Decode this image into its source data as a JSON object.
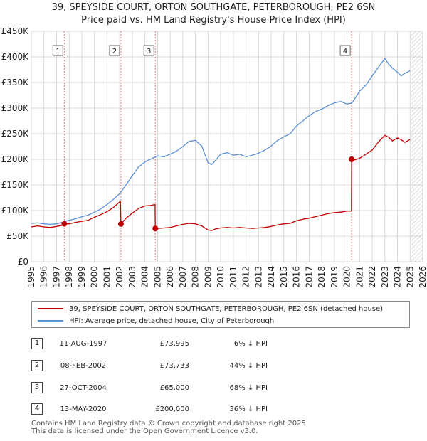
{
  "title_line1": "39, SPEYSIDE COURT, ORTON SOUTHGATE, PETERBOROUGH, PE2 6SN",
  "title_line2": "Price paid vs. HM Land Registry's House Price Index (HPI)",
  "colors": {
    "price_paid": "#c00000",
    "hpi": "#5b8fd6",
    "marker_line": "#e08080",
    "grid": "#d8d8d8",
    "hatch": "#aaaaaa"
  },
  "legend": {
    "series1": "39, SPEYSIDE COURT, ORTON SOUTHGATE, PETERBOROUGH, PE2 6SN (detached house)",
    "series2": "HPI: Average price, detached house, City of Peterborough"
  },
  "transactions": [
    {
      "num": "1",
      "date": "11-AUG-1997",
      "price": "£73,995",
      "hpi_diff": "6% ↓ HPI"
    },
    {
      "num": "2",
      "date": "08-FEB-2002",
      "price": "£73,733",
      "hpi_diff": "44% ↓ HPI"
    },
    {
      "num": "3",
      "date": "27-OCT-2004",
      "price": "£65,000",
      "hpi_diff": "68% ↓ HPI"
    },
    {
      "num": "4",
      "date": "13-MAY-2020",
      "price": "£200,000",
      "hpi_diff": "36% ↓ HPI"
    }
  ],
  "footer_line1": "Contains HM Land Registry data © Crown copyright and database right 2025.",
  "footer_line2": "This data is licensed under the Open Government Licence v3.0.",
  "chart_data": {
    "type": "line",
    "title": "39, SPEYSIDE COURT, ORTON SOUTHGATE, PETERBOROUGH, PE2 6SN — Price paid vs. HM Land Registry's House Price Index (HPI)",
    "xlabel": "",
    "ylabel": "",
    "xlim": [
      1995,
      2026
    ],
    "ylim": [
      0,
      450000
    ],
    "x_ticks": [
      1995,
      1996,
      1997,
      1998,
      1999,
      2000,
      2001,
      2002,
      2003,
      2004,
      2005,
      2006,
      2007,
      2008,
      2009,
      2010,
      2011,
      2012,
      2013,
      2014,
      2015,
      2016,
      2017,
      2018,
      2019,
      2020,
      2021,
      2022,
      2023,
      2024,
      2025,
      2026
    ],
    "y_ticks": [
      0,
      50000,
      100000,
      150000,
      200000,
      250000,
      300000,
      350000,
      400000,
      450000
    ],
    "y_tick_labels": [
      "£0",
      "£50K",
      "£100K",
      "£150K",
      "£200K",
      "£250K",
      "£300K",
      "£350K",
      "£400K",
      "£450K"
    ],
    "grid": true,
    "forecast_hatch_from": 2025.1,
    "series": [
      {
        "name": "39, SPEYSIDE COURT, ORTON SOUTHGATE, PETERBOROUGH, PE2 6SN (detached house)",
        "x": [
          1995.0,
          1995.5,
          1996.0,
          1996.5,
          1997.0,
          1997.6,
          1997.61,
          1998.0,
          1998.5,
          1999.0,
          1999.5,
          2000.0,
          2000.5,
          2001.0,
          2001.5,
          2002.05,
          2002.1,
          2002.5,
          2003.0,
          2003.5,
          2004.0,
          2004.5,
          2004.8,
          2004.82,
          2005.0,
          2005.5,
          2006.0,
          2006.5,
          2007.0,
          2007.5,
          2008.0,
          2008.5,
          2009.0,
          2009.3,
          2009.6,
          2010.0,
          2010.5,
          2011.0,
          2011.5,
          2012.0,
          2012.5,
          2013.0,
          2013.5,
          2014.0,
          2014.5,
          2015.0,
          2015.5,
          2016.0,
          2016.5,
          2017.0,
          2017.5,
          2018.0,
          2018.5,
          2019.0,
          2019.5,
          2020.0,
          2020.35,
          2020.37,
          2020.5,
          2021.0,
          2021.5,
          2022.0,
          2022.5,
          2023.0,
          2023.3,
          2023.6,
          2024.0,
          2024.3,
          2024.6,
          2025.0
        ],
        "y": [
          68000,
          70000,
          68000,
          67000,
          69000,
          72000,
          73995,
          74000,
          77000,
          79000,
          81000,
          87000,
          92000,
          98000,
          106000,
          118000,
          73733,
          85000,
          95000,
          104000,
          109000,
          110000,
          112000,
          65000,
          65000,
          66000,
          67000,
          70000,
          73000,
          75000,
          74000,
          70000,
          62000,
          61000,
          64000,
          66000,
          67000,
          66000,
          67000,
          66000,
          65000,
          66000,
          67000,
          69000,
          72000,
          74000,
          75000,
          80000,
          83000,
          85000,
          88000,
          91000,
          94000,
          96000,
          97000,
          99000,
          99000,
          200000,
          198000,
          202000,
          210000,
          218000,
          234000,
          247000,
          243000,
          236000,
          242000,
          238000,
          233000,
          239000
        ]
      },
      {
        "name": "HPI: Average price, detached house, City of Peterborough",
        "x": [
          1995.0,
          1995.5,
          1996.0,
          1996.5,
          1997.0,
          1997.6,
          1998.0,
          1998.5,
          1999.0,
          1999.5,
          2000.0,
          2000.5,
          2001.0,
          2001.5,
          2002.0,
          2002.5,
          2003.0,
          2003.5,
          2004.0,
          2004.5,
          2005.0,
          2005.5,
          2006.0,
          2006.5,
          2007.0,
          2007.5,
          2008.0,
          2008.5,
          2009.0,
          2009.3,
          2009.6,
          2010.0,
          2010.5,
          2011.0,
          2011.5,
          2012.0,
          2012.5,
          2013.0,
          2013.5,
          2014.0,
          2014.5,
          2015.0,
          2015.5,
          2016.0,
          2016.5,
          2017.0,
          2017.5,
          2018.0,
          2018.5,
          2019.0,
          2019.5,
          2020.0,
          2020.4,
          2020.8,
          2021.0,
          2021.5,
          2022.0,
          2022.5,
          2023.0,
          2023.3,
          2023.6,
          2024.0,
          2024.3,
          2024.6,
          2025.0
        ],
        "y": [
          75000,
          76000,
          74000,
          73000,
          74000,
          78000,
          81000,
          84000,
          88000,
          91000,
          97000,
          103000,
          112000,
          122000,
          133000,
          150000,
          168000,
          185000,
          195000,
          201000,
          207000,
          205000,
          210000,
          216000,
          225000,
          235000,
          237000,
          226000,
          193000,
          190000,
          198000,
          210000,
          213000,
          208000,
          210000,
          205000,
          208000,
          212000,
          218000,
          226000,
          237000,
          244000,
          250000,
          265000,
          275000,
          285000,
          293000,
          298000,
          305000,
          310000,
          313000,
          308000,
          310000,
          325000,
          333000,
          345000,
          363000,
          380000,
          397000,
          386000,
          378000,
          370000,
          363000,
          368000,
          373000
        ]
      }
    ],
    "annotations": [
      {
        "label": "1",
        "x": 1997.61,
        "y": 73995
      },
      {
        "label": "2",
        "x": 2002.1,
        "y": 73733
      },
      {
        "label": "3",
        "x": 2004.82,
        "y": 65000
      },
      {
        "label": "4",
        "x": 2020.37,
        "y": 200000
      }
    ]
  }
}
